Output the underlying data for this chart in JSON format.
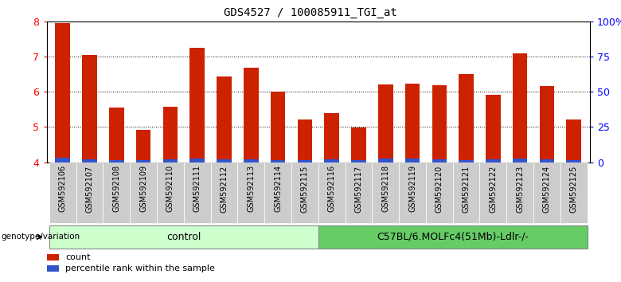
{
  "title": "GDS4527 / 100085911_TGI_at",
  "samples": [
    "GSM592106",
    "GSM592107",
    "GSM592108",
    "GSM592109",
    "GSM592110",
    "GSM592111",
    "GSM592112",
    "GSM592113",
    "GSM592114",
    "GSM592115",
    "GSM592116",
    "GSM592117",
    "GSM592118",
    "GSM592119",
    "GSM592120",
    "GSM592121",
    "GSM592122",
    "GSM592123",
    "GSM592124",
    "GSM592125"
  ],
  "count_values": [
    7.95,
    7.05,
    5.55,
    4.92,
    5.58,
    7.25,
    6.42,
    6.68,
    6.0,
    5.22,
    5.38,
    4.98,
    6.2,
    6.22,
    6.18,
    6.5,
    5.92,
    7.08,
    6.15,
    5.22
  ],
  "percentile_values": [
    0.12,
    0.08,
    0.06,
    0.06,
    0.08,
    0.1,
    0.08,
    0.08,
    0.06,
    0.06,
    0.08,
    0.06,
    0.1,
    0.1,
    0.08,
    0.06,
    0.08,
    0.1,
    0.08,
    0.06
  ],
  "ylim_left": [
    4.0,
    8.0
  ],
  "ylim_right": [
    0,
    100
  ],
  "yticks_left": [
    4,
    5,
    6,
    7,
    8
  ],
  "yticks_right": [
    0,
    25,
    50,
    75,
    100
  ],
  "ytick_labels_right": [
    "0",
    "25",
    "50",
    "75",
    "100%"
  ],
  "bar_width": 0.55,
  "count_color": "#cc2200",
  "percentile_color": "#3355cc",
  "ctrl_n": 10,
  "mut_n": 10,
  "control_label": "control",
  "mutant_label": "C57BL/6.MOLFc4(51Mb)-Ldlr-/-",
  "control_color": "#ccffcc",
  "mutant_color": "#66cc66",
  "group_row_label": "genotype/variation",
  "legend_count": "count",
  "legend_percentile": "percentile rank within the sample",
  "title_fontsize": 10,
  "tick_label_fontsize": 7,
  "tick_bg_color": "#cccccc"
}
